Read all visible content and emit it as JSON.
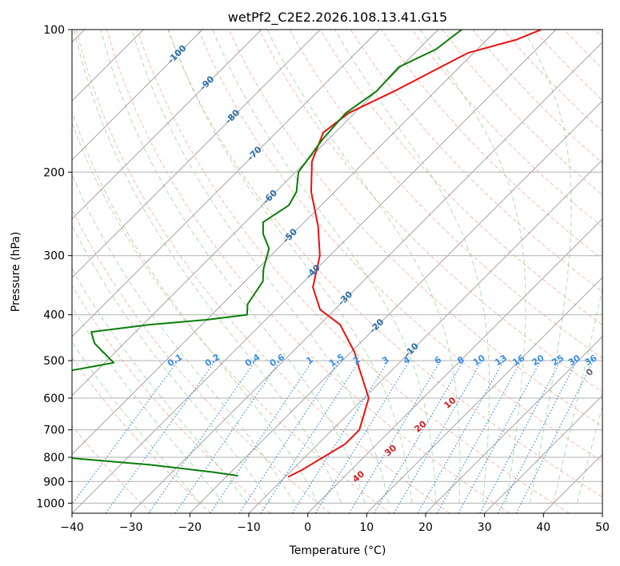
{
  "chart_data": {
    "type": "line",
    "diagram": "skew-T log-p",
    "title": "wetPf2_C2E2.2026.108.13.41.G15",
    "xlabel": "Temperature (°C)",
    "ylabel": "Pressure (hPa)",
    "xlim": [
      -40,
      50
    ],
    "ylim": [
      1050,
      100
    ],
    "x_ticks": [
      -40,
      -30,
      -20,
      -10,
      0,
      10,
      20,
      30,
      40,
      50
    ],
    "y_ticks": [
      100,
      200,
      300,
      400,
      500,
      600,
      700,
      800,
      900,
      1000
    ],
    "grid": true,
    "colors": {
      "temperature": "#e8120f",
      "dewpoint": "#0a7d0a",
      "isotherm": "#9a9a9a",
      "dry_adiabat": "#f6a58f",
      "moist_adiabat": "#8fcf8f",
      "mixing_ratio": "#3b8ee6",
      "isotherm_label": "#2a6fa8",
      "moist_label": "#d42020",
      "zero_label": "#666666"
    },
    "series": [
      {
        "name": "Temperature",
        "points": [
          [
            100,
            -42.5
          ],
          [
            105,
            -45
          ],
          [
            112,
            -51
          ],
          [
            123,
            -54
          ],
          [
            135,
            -57
          ],
          [
            150,
            -61
          ],
          [
            165,
            -62
          ],
          [
            190,
            -59
          ],
          [
            220,
            -54
          ],
          [
            260,
            -47
          ],
          [
            300,
            -41.7
          ],
          [
            350,
            -37.5
          ],
          [
            390,
            -32.5
          ],
          [
            420,
            -26.5
          ],
          [
            480,
            -19.4
          ],
          [
            520,
            -15.8
          ],
          [
            600,
            -9.2
          ],
          [
            700,
            -5.4
          ],
          [
            750,
            -5.4
          ],
          [
            850,
            -8.3
          ],
          [
            880,
            -9.5
          ]
        ]
      },
      {
        "name": "Dewpoint",
        "points": [
          [
            100,
            -56
          ],
          [
            110,
            -57
          ],
          [
            120,
            -60.3
          ],
          [
            135,
            -60
          ],
          [
            150,
            -61.5
          ],
          [
            170,
            -61
          ],
          [
            200,
            -59.5
          ],
          [
            220,
            -56.5
          ],
          [
            235,
            -55.5
          ],
          [
            255,
            -57
          ],
          [
            270,
            -55
          ],
          [
            290,
            -51.5
          ],
          [
            320,
            -49
          ],
          [
            340,
            -47
          ],
          [
            380,
            -45.7
          ],
          [
            400,
            -44
          ],
          [
            410,
            -50
          ],
          [
            420,
            -59
          ],
          [
            435,
            -67.5
          ],
          [
            460,
            -65
          ],
          [
            505,
            -58.5
          ],
          [
            520,
            -63
          ],
          [
            560,
            -76
          ],
          [
            610,
            -77
          ],
          [
            620,
            -75
          ],
          [
            645,
            -79
          ],
          [
            680,
            -75.5
          ],
          [
            730,
            -72.5
          ],
          [
            770,
            -81
          ],
          [
            790,
            -57
          ],
          [
            830,
            -34.8
          ],
          [
            860,
            -23
          ],
          [
            875,
            -18.2
          ]
        ]
      }
    ],
    "isotherm_labels": [
      "-100",
      "-90",
      "-80",
      "-70",
      "-60",
      "-50",
      "-40",
      "-30",
      "-20",
      "-10"
    ],
    "mixing_ratio_labels": [
      "0.1",
      "0.2",
      "0.4",
      "0.6",
      "1",
      "1.5",
      "2",
      "3",
      "4",
      "6",
      "8",
      "10",
      "13",
      "16",
      "20",
      "25",
      "30",
      "36"
    ],
    "moist_labels": [
      "0",
      "10",
      "20",
      "30",
      "40"
    ]
  }
}
